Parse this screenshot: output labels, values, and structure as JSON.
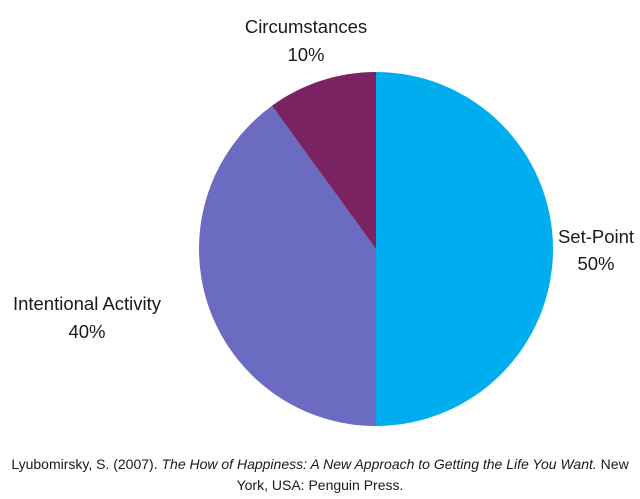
{
  "chart_data": {
    "type": "pie",
    "slices": [
      {
        "label": "Set-Point",
        "value": 50,
        "value_label": "50%",
        "color": "#00AEEF"
      },
      {
        "label": "Intentional Activity",
        "value": 40,
        "value_label": "40%",
        "color": "#6A6BC1"
      },
      {
        "label": "Circumstances",
        "value": 10,
        "value_label": "10%",
        "color": "#7A2262"
      }
    ],
    "start": "12 o'clock",
    "direction": "clockwise"
  },
  "citation": {
    "authors": "Lyubomirsky, S. (2007). ",
    "title": "The How of Happiness: A New Approach to Getting the Life You Want.",
    "publisher": " New York, USA: Penguin Press."
  }
}
